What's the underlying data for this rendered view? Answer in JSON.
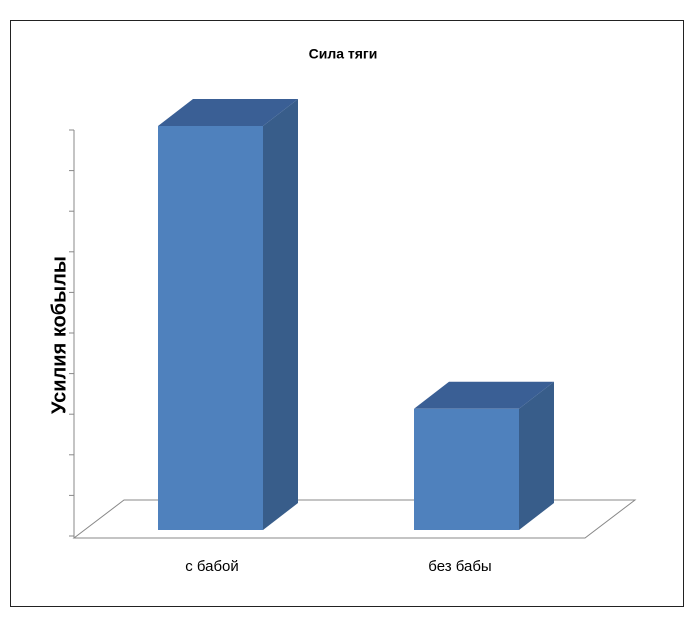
{
  "chart_data": {
    "type": "bar3d",
    "title": "Сила тяги",
    "y_label": "Усилия кобылы",
    "categories": [
      "с бабой",
      "без бабы"
    ],
    "values": [
      10,
      3
    ],
    "color": "#4f81bd",
    "ylim": [
      0,
      10
    ],
    "yticks": [
      0,
      1,
      2,
      3,
      4,
      5,
      6,
      7,
      8,
      9,
      10
    ]
  }
}
